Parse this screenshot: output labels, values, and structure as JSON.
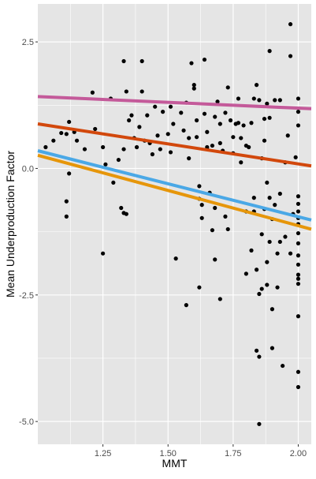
{
  "chart_data": {
    "type": "scatter",
    "title": "",
    "xlabel": "MMT",
    "ylabel": "Mean Underproduction Factor",
    "xlim": [
      1.0,
      2.05
    ],
    "ylim": [
      -5.45,
      3.25
    ],
    "xticks": [
      1.25,
      1.5,
      1.75,
      2.0
    ],
    "xtick_labels": [
      "1.25",
      "1.50",
      "1.75",
      "2.00"
    ],
    "yticks": [
      -5.0,
      -2.5,
      0.0,
      2.5
    ],
    "ytick_labels": [
      "-5.0",
      "-2.5",
      "0.0",
      "2.5"
    ],
    "grid": true,
    "background": "#e5e5e5",
    "grid_color": "#ffffff",
    "point_color": "#000000",
    "points": [
      {
        "x": 1.03,
        "y": 0.42
      },
      {
        "x": 1.06,
        "y": 0.55
      },
      {
        "x": 1.09,
        "y": 0.7
      },
      {
        "x": 1.11,
        "y": 0.68
      },
      {
        "x": 1.12,
        "y": 0.92
      },
      {
        "x": 1.14,
        "y": 0.72
      },
      {
        "x": 1.15,
        "y": 0.55
      },
      {
        "x": 1.18,
        "y": 0.38
      },
      {
        "x": 1.12,
        "y": -0.1
      },
      {
        "x": 1.11,
        "y": -0.65
      },
      {
        "x": 1.11,
        "y": -0.95
      },
      {
        "x": 1.21,
        "y": 1.5
      },
      {
        "x": 1.22,
        "y": 0.78
      },
      {
        "x": 1.25,
        "y": 0.42
      },
      {
        "x": 1.26,
        "y": 0.08
      },
      {
        "x": 1.25,
        "y": -1.68
      },
      {
        "x": 1.28,
        "y": 1.38
      },
      {
        "x": 1.29,
        "y": -0.28
      },
      {
        "x": 1.31,
        "y": 0.17
      },
      {
        "x": 1.32,
        "y": -0.78
      },
      {
        "x": 1.33,
        "y": 0.38
      },
      {
        "x": 1.33,
        "y": -0.88
      },
      {
        "x": 1.34,
        "y": -0.9
      },
      {
        "x": 1.33,
        "y": 2.12
      },
      {
        "x": 1.34,
        "y": 1.52
      },
      {
        "x": 1.35,
        "y": 0.95
      },
      {
        "x": 1.36,
        "y": 1.05
      },
      {
        "x": 1.37,
        "y": 0.6
      },
      {
        "x": 1.38,
        "y": 0.42
      },
      {
        "x": 1.39,
        "y": 0.82
      },
      {
        "x": 1.4,
        "y": 1.52
      },
      {
        "x": 1.4,
        "y": 2.12
      },
      {
        "x": 1.41,
        "y": 0.55
      },
      {
        "x": 1.42,
        "y": 1.05
      },
      {
        "x": 1.43,
        "y": 0.5
      },
      {
        "x": 1.44,
        "y": 0.28
      },
      {
        "x": 1.45,
        "y": 1.22
      },
      {
        "x": 1.46,
        "y": 0.65
      },
      {
        "x": 1.47,
        "y": 0.38
      },
      {
        "x": 1.48,
        "y": 1.12
      },
      {
        "x": 1.5,
        "y": 0.68
      },
      {
        "x": 1.51,
        "y": 1.22
      },
      {
        "x": 1.51,
        "y": 0.32
      },
      {
        "x": 1.52,
        "y": 0.88
      },
      {
        "x": 1.53,
        "y": -1.78
      },
      {
        "x": 1.55,
        "y": 1.1
      },
      {
        "x": 1.56,
        "y": 0.75
      },
      {
        "x": 1.57,
        "y": 1.3
      },
      {
        "x": 1.57,
        "y": -2.7
      },
      {
        "x": 1.58,
        "y": 0.2
      },
      {
        "x": 1.58,
        "y": 0.6
      },
      {
        "x": 1.59,
        "y": 2.08
      },
      {
        "x": 1.6,
        "y": 1.65
      },
      {
        "x": 1.6,
        "y": 1.58
      },
      {
        "x": 1.61,
        "y": 0.95
      },
      {
        "x": 1.61,
        "y": 0.62
      },
      {
        "x": 1.62,
        "y": -0.35
      },
      {
        "x": 1.62,
        "y": -0.6
      },
      {
        "x": 1.63,
        "y": -0.72
      },
      {
        "x": 1.63,
        "y": -0.98
      },
      {
        "x": 1.62,
        "y": -2.35
      },
      {
        "x": 1.64,
        "y": 2.15
      },
      {
        "x": 1.64,
        "y": 1.08
      },
      {
        "x": 1.65,
        "y": 0.72
      },
      {
        "x": 1.65,
        "y": 0.42
      },
      {
        "x": 1.65,
        "y": 0.38
      },
      {
        "x": 1.66,
        "y": -0.48
      },
      {
        "x": 1.67,
        "y": -1.22
      },
      {
        "x": 1.67,
        "y": 0.45
      },
      {
        "x": 1.68,
        "y": 1.02
      },
      {
        "x": 1.68,
        "y": -1.8
      },
      {
        "x": 1.68,
        "y": -0.78
      },
      {
        "x": 1.69,
        "y": 1.32
      },
      {
        "x": 1.7,
        "y": 0.88
      },
      {
        "x": 1.7,
        "y": 0.5
      },
      {
        "x": 1.7,
        "y": -2.58
      },
      {
        "x": 1.71,
        "y": 0.35
      },
      {
        "x": 1.72,
        "y": 1.1
      },
      {
        "x": 1.72,
        "y": -0.95
      },
      {
        "x": 1.73,
        "y": 1.6
      },
      {
        "x": 1.73,
        "y": -1.2
      },
      {
        "x": 1.74,
        "y": 0.95
      },
      {
        "x": 1.75,
        "y": 0.62
      },
      {
        "x": 1.75,
        "y": 0.3
      },
      {
        "x": 1.76,
        "y": 0.88
      },
      {
        "x": 1.77,
        "y": 1.38
      },
      {
        "x": 1.77,
        "y": 0.9
      },
      {
        "x": 1.78,
        "y": 0.12
      },
      {
        "x": 1.78,
        "y": 0.6
      },
      {
        "x": 1.79,
        "y": 0.85
      },
      {
        "x": 1.8,
        "y": 0.45
      },
      {
        "x": 1.8,
        "y": -0.85
      },
      {
        "x": 1.8,
        "y": -2.08
      },
      {
        "x": 1.81,
        "y": 0.42
      },
      {
        "x": 1.82,
        "y": 0.9
      },
      {
        "x": 1.82,
        "y": -1.62
      },
      {
        "x": 1.83,
        "y": 1.38
      },
      {
        "x": 1.83,
        "y": -0.58
      },
      {
        "x": 1.83,
        "y": -0.85
      },
      {
        "x": 1.84,
        "y": -2.0
      },
      {
        "x": 1.84,
        "y": 1.65
      },
      {
        "x": 1.84,
        "y": -3.6
      },
      {
        "x": 1.85,
        "y": 1.35
      },
      {
        "x": 1.85,
        "y": -2.48
      },
      {
        "x": 1.85,
        "y": -5.05
      },
      {
        "x": 1.85,
        "y": -3.72
      },
      {
        "x": 1.86,
        "y": -1.3
      },
      {
        "x": 1.86,
        "y": -2.38
      },
      {
        "x": 1.86,
        "y": 0.2
      },
      {
        "x": 1.87,
        "y": 0.55
      },
      {
        "x": 1.87,
        "y": 0.98
      },
      {
        "x": 1.87,
        "y": -0.8
      },
      {
        "x": 1.88,
        "y": 1.28
      },
      {
        "x": 1.88,
        "y": -0.28
      },
      {
        "x": 1.88,
        "y": -1.85
      },
      {
        "x": 1.88,
        "y": -2.3
      },
      {
        "x": 1.89,
        "y": -0.58
      },
      {
        "x": 1.89,
        "y": -1.45
      },
      {
        "x": 1.89,
        "y": 2.32
      },
      {
        "x": 1.89,
        "y": 1.0
      },
      {
        "x": 1.9,
        "y": -2.78
      },
      {
        "x": 1.9,
        "y": -3.55
      },
      {
        "x": 1.9,
        "y": -1.0
      },
      {
        "x": 1.91,
        "y": 1.35
      },
      {
        "x": 1.91,
        "y": -0.72
      },
      {
        "x": 1.92,
        "y": -1.68
      },
      {
        "x": 1.92,
        "y": -2.35
      },
      {
        "x": 1.93,
        "y": 1.35
      },
      {
        "x": 1.93,
        "y": -0.5
      },
      {
        "x": 1.93,
        "y": -1.45
      },
      {
        "x": 1.94,
        "y": -3.9
      },
      {
        "x": 1.95,
        "y": 0.12
      },
      {
        "x": 1.95,
        "y": -1.35
      },
      {
        "x": 1.96,
        "y": 0.65
      },
      {
        "x": 1.97,
        "y": 2.85
      },
      {
        "x": 1.97,
        "y": 2.22
      },
      {
        "x": 1.97,
        "y": -1.68
      },
      {
        "x": 1.98,
        "y": -0.9
      },
      {
        "x": 1.99,
        "y": 0.22
      },
      {
        "x": 2.0,
        "y": 1.38
      },
      {
        "x": 2.0,
        "y": 1.12
      },
      {
        "x": 2.0,
        "y": 0.85
      },
      {
        "x": 2.0,
        "y": -0.55
      },
      {
        "x": 2.0,
        "y": -0.7
      },
      {
        "x": 2.0,
        "y": -0.85
      },
      {
        "x": 2.0,
        "y": -0.98
      },
      {
        "x": 2.0,
        "y": -1.1
      },
      {
        "x": 2.0,
        "y": -1.28
      },
      {
        "x": 2.0,
        "y": -1.48
      },
      {
        "x": 2.0,
        "y": -1.72
      },
      {
        "x": 2.0,
        "y": -1.9
      },
      {
        "x": 2.0,
        "y": -2.1
      },
      {
        "x": 2.0,
        "y": -2.18
      },
      {
        "x": 2.0,
        "y": -2.28
      },
      {
        "x": 2.0,
        "y": -2.92
      },
      {
        "x": 2.0,
        "y": -4.02
      },
      {
        "x": 2.0,
        "y": -4.32
      }
    ],
    "lines": [
      {
        "color": "#c45a9a",
        "x": [
          1.0,
          2.05
        ],
        "y": [
          1.42,
          1.18
        ]
      },
      {
        "color": "#d2480c",
        "x": [
          1.0,
          2.05
        ],
        "y": [
          0.88,
          0.05
        ]
      },
      {
        "color": "#4aa8e6",
        "x": [
          1.0,
          2.05
        ],
        "y": [
          0.35,
          -1.02
        ]
      },
      {
        "color": "#e6960a",
        "x": [
          1.0,
          2.05
        ],
        "y": [
          0.26,
          -1.2
        ]
      }
    ]
  }
}
